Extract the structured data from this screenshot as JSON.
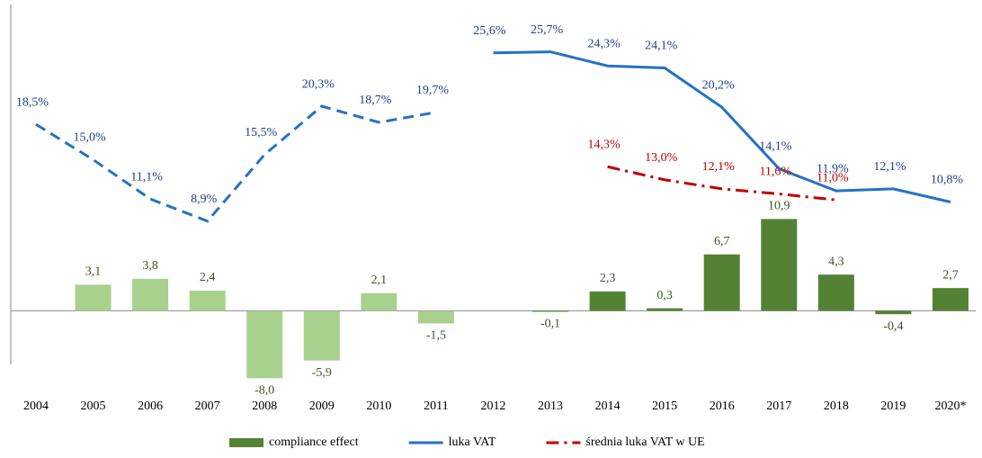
{
  "chart_data": {
    "type": "combo",
    "categories": [
      "2004",
      "2005",
      "2006",
      "2007",
      "2008",
      "2009",
      "2010",
      "2011",
      "2012",
      "2013",
      "2014",
      "2015",
      "2016",
      "2017",
      "2018",
      "2019",
      "2020*"
    ],
    "ylim": [
      -8.5,
      35.3
    ],
    "y2lim": [
      -7.1,
      29.5
    ],
    "legend": "bottom",
    "series": [
      {
        "name": "compliance effect",
        "type": "bar",
        "color": "#548235",
        "colors": [
          null,
          "#a9d18e",
          "#a9d18e",
          "#a9d18e",
          "#a9d18e",
          "#a9d18e",
          "#a9d18e",
          "#a9d18e",
          null,
          "#548235",
          "#548235",
          "#548235",
          "#548235",
          "#548235",
          "#548235",
          "#548235",
          "#548235"
        ],
        "values": [
          null,
          3.1,
          3.8,
          2.4,
          -8.0,
          -5.9,
          2.1,
          -1.5,
          null,
          -0.1,
          2.3,
          0.3,
          6.7,
          10.9,
          4.3,
          -0.4,
          2.7
        ],
        "value_labels": [
          null,
          "3,1",
          "3,8",
          "2,4",
          "-8,0",
          "-5,9",
          "2,1",
          "-1,5",
          null,
          "-0,1",
          "2,3",
          "0,3",
          "6,7",
          "10,9",
          "4,3",
          "-0,4",
          "2,7"
        ],
        "label_color": "#375623"
      },
      {
        "name": "luka VAT",
        "type": "line",
        "axis": "y2",
        "color": "#2372c6",
        "label_color": "#1f3f8f",
        "dashed": [
          true,
          true,
          true,
          true,
          true,
          true,
          true,
          true,
          false,
          false,
          false,
          false,
          false,
          false,
          false,
          false,
          false
        ],
        "values": [
          18.5,
          15.0,
          11.1,
          8.9,
          15.5,
          20.3,
          18.7,
          19.7,
          25.6,
          25.7,
          24.3,
          24.1,
          20.2,
          14.1,
          11.9,
          12.1,
          10.8
        ],
        "value_labels": [
          "18,5%",
          "15,0%",
          "11,1%",
          "8,9%",
          "15,5%",
          "20,3%",
          "18,7%",
          "19,7%",
          "25,6%",
          "25,7%",
          "24,3%",
          "24,1%",
          "20,2%",
          "14,1%",
          "11,9%",
          "12,1%",
          "10,8%"
        ]
      },
      {
        "name": "średnia luka VAT w UE",
        "type": "dashdot",
        "axis": "y2",
        "color": "#c00000",
        "label_color": "#c00000",
        "values": [
          null,
          null,
          null,
          null,
          null,
          null,
          null,
          null,
          null,
          null,
          14.3,
          13.0,
          12.1,
          11.6,
          11.0,
          null,
          null
        ],
        "value_labels": [
          null,
          null,
          null,
          null,
          null,
          null,
          null,
          null,
          null,
          null,
          "14,3%",
          "13,0%",
          "12,1%",
          "11,6%",
          "11,0%",
          null,
          null
        ]
      }
    ]
  }
}
